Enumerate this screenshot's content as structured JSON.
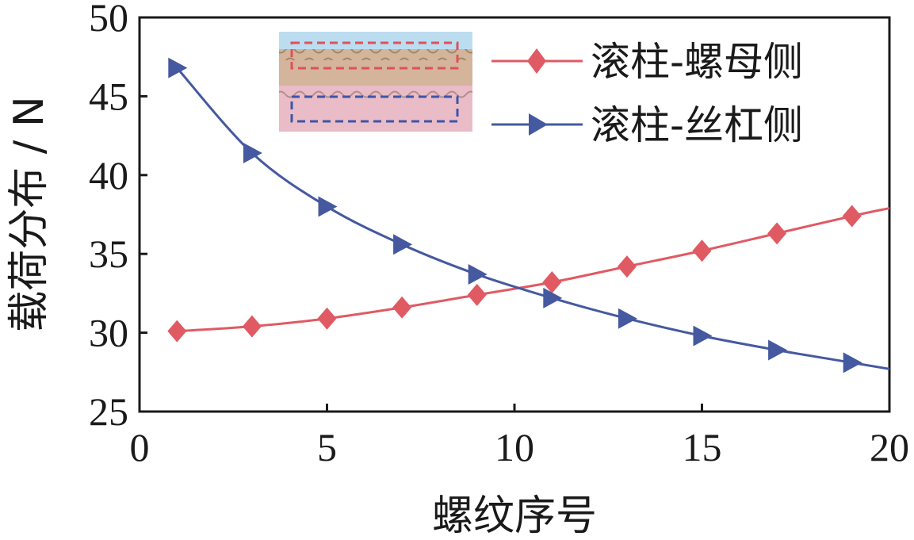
{
  "chart_data": {
    "type": "line",
    "xlabel": "螺纹序号",
    "ylabel": "载荷分布 / N",
    "xlim": [
      0,
      20
    ],
    "ylim": [
      25,
      50
    ],
    "xticks": [
      0,
      5,
      10,
      15,
      20
    ],
    "yticks": [
      25,
      30,
      35,
      40,
      45,
      50
    ],
    "grid": false,
    "legend_position": "top-right",
    "series": [
      {
        "name": "滚柱-螺母侧",
        "color": "#e05a63",
        "marker": "diamond",
        "x": [
          1,
          3,
          5,
          7,
          9,
          11,
          13,
          15,
          17,
          19
        ],
        "values": [
          30.1,
          30.4,
          30.9,
          31.6,
          32.4,
          33.2,
          34.2,
          35.2,
          36.3,
          37.4
        ],
        "curve_end": {
          "x": 20,
          "y": 37.9
        }
      },
      {
        "name": "滚柱-丝杠侧",
        "color": "#4559a0",
        "marker": "triangle-right",
        "x": [
          1,
          3,
          5,
          7,
          9,
          11,
          13,
          15,
          17,
          19
        ],
        "values": [
          46.8,
          41.4,
          38.0,
          35.6,
          33.7,
          32.2,
          30.9,
          29.8,
          28.9,
          28.1
        ],
        "curve_end": {
          "x": 20,
          "y": 27.7
        }
      }
    ]
  }
}
